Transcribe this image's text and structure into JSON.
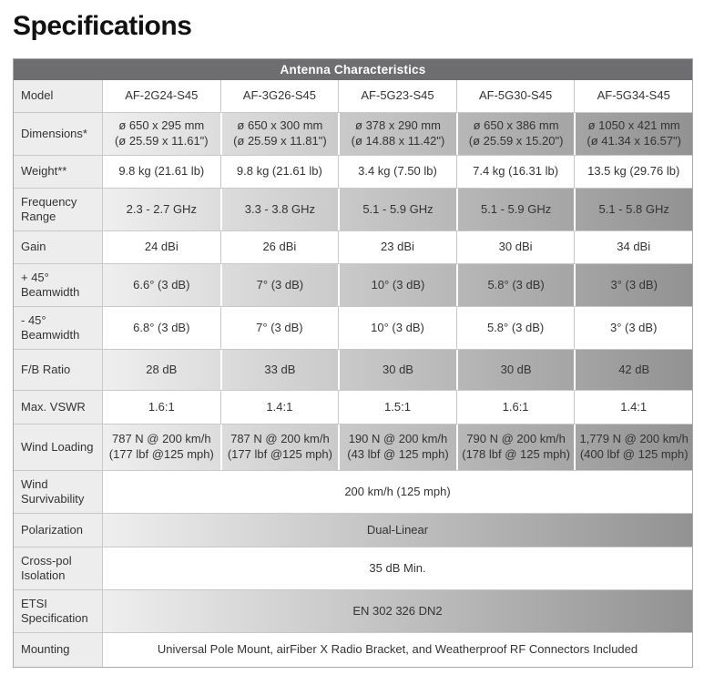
{
  "page": {
    "title": "Specifications"
  },
  "table": {
    "header": "Antenna Characteristics",
    "columns": [
      "AF-2G24-S45",
      "AF-3G26-S45",
      "AF-5G23-S45",
      "AF-5G30-S45",
      "AF-5G34-S45"
    ],
    "colors": {
      "header_bg": "#6e6e70",
      "header_text": "#ffffff",
      "label_bg": "#ededed",
      "shade_gradient_start": "#efefef",
      "shade_gradient_end": "#929292",
      "border": "#c9c9c9",
      "text": "#333333"
    },
    "rows": [
      {
        "label": "Model",
        "shaded": false,
        "cells": [
          "AF-2G24-S45",
          "AF-3G26-S45",
          "AF-5G23-S45",
          "AF-5G30-S45",
          "AF-5G34-S45"
        ]
      },
      {
        "label": "Dimensions*",
        "shaded": true,
        "cells": [
          "ø 650 x 295 mm\n(ø 25.59 x 11.61\")",
          "ø 650 x 300 mm\n(ø 25.59 x 11.81\")",
          "ø 378 x 290 mm\n(ø 14.88 x 11.42\")",
          "ø 650 x 386 mm\n(ø 25.59 x 15.20\")",
          "ø 1050 x 421 mm\n(ø 41.34 x 16.57\")"
        ]
      },
      {
        "label": "Weight**",
        "shaded": false,
        "cells": [
          "9.8 kg (21.61 lb)",
          "9.8 kg (21.61 lb)",
          "3.4 kg (7.50 lb)",
          "7.4 kg (16.31 lb)",
          "13.5 kg (29.76 lb)"
        ]
      },
      {
        "label": "Frequency Range",
        "shaded": true,
        "cells": [
          "2.3 - 2.7 GHz",
          "3.3 - 3.8 GHz",
          "5.1 - 5.9 GHz",
          "5.1 - 5.9 GHz",
          "5.1 - 5.8 GHz"
        ]
      },
      {
        "label": "Gain",
        "shaded": false,
        "cells": [
          "24 dBi",
          "26 dBi",
          "23 dBi",
          "30 dBi",
          "34 dBi"
        ]
      },
      {
        "label": "+ 45° Beamwidth",
        "shaded": true,
        "cells": [
          "6.6° (3 dB)",
          "7° (3 dB)",
          "10° (3 dB)",
          "5.8° (3 dB)",
          "3° (3 dB)"
        ]
      },
      {
        "label": "- 45° Beamwidth",
        "shaded": false,
        "cells": [
          "6.8° (3 dB)",
          "7° (3 dB)",
          "10° (3 dB)",
          "5.8° (3 dB)",
          "3° (3 dB)"
        ]
      },
      {
        "label": "F/B Ratio",
        "shaded": true,
        "cells": [
          "28 dB",
          "33 dB",
          "30 dB",
          "30 dB",
          "42 dB"
        ]
      },
      {
        "label": "Max. VSWR",
        "shaded": false,
        "cells": [
          "1.6:1",
          "1.4:1",
          "1.5:1",
          "1.6:1",
          "1.4:1"
        ]
      },
      {
        "label": "Wind Loading",
        "shaded": true,
        "cells": [
          "787 N @ 200 km/h\n(177 lbf @125 mph)",
          "787 N @ 200 km/h\n(177 lbf @125 mph)",
          "190 N @ 200 km/h\n(43 lbf @ 125 mph)",
          "790 N @ 200 km/h\n(178 lbf @ 125 mph)",
          "1,779 N @ 200 km/h\n(400 lbf @ 125 mph)"
        ]
      },
      {
        "label": "Wind Survivability",
        "shaded": false,
        "value": "200 km/h (125 mph)"
      },
      {
        "label": "Polarization",
        "shaded": true,
        "value": "Dual-Linear"
      },
      {
        "label": "Cross-pol Isolation",
        "shaded": false,
        "value": "35 dB Min."
      },
      {
        "label": "ETSI Specification",
        "shaded": true,
        "value": "EN 302 326 DN2"
      },
      {
        "label": "Mounting",
        "shaded": false,
        "value": "Universal Pole Mount, airFiber X Radio Bracket, and Weatherproof RF Connectors Included"
      }
    ]
  }
}
